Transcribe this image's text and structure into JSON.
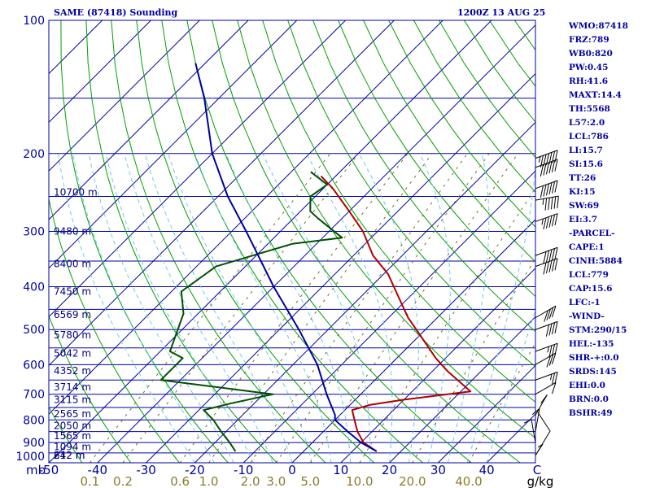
{
  "header": {
    "station": "SAME (87418) Sounding",
    "time": "1200Z 13 AUG 25"
  },
  "indices": [
    "WMO:87418",
    "FRZ:789",
    "WB0:820",
    "PW:0.45",
    "RH:41.6",
    "MAXT:14.4",
    "TH:5568",
    "L57:2.0",
    "LCL:786",
    "LI:15.7",
    "SI:15.6",
    "TT:26",
    "KI:15",
    "SW:69",
    "EI:3.7",
    "-PARCEL-",
    "CAPE:1",
    "CINH:5884",
    "LCL:779",
    "CAP:15.6",
    "LFC:-1",
    "-WIND-",
    "STM:290/15",
    "HEL:-135",
    "SHR-+:0.0",
    "SRDS:145",
    "EHI:0.0",
    "BRN:0.0",
    "BSHR:49"
  ],
  "colors": {
    "frame": "#0000a0",
    "isobar": "#0000a0",
    "isotherm": "#0000a0",
    "dry_adiabat": "#00a000",
    "moist_adiabat": "#6fc8ec",
    "mixing_ratio": "#7a6b1a",
    "temperature": "#b00000",
    "dewpoint": "#005000",
    "parcel": "#0000a0",
    "wind_barb": "#000000",
    "hodograph": "#000000"
  },
  "chart_data": {
    "type": "skew-t log-p sounding",
    "y_axis": {
      "label": "mb",
      "scale": "log",
      "range": [
        1000,
        100
      ],
      "tick_labels": [
        "100",
        "200",
        "300",
        "400",
        "500",
        "600",
        "700",
        "800",
        "900",
        "1000"
      ]
    },
    "x_axis": {
      "label": "C",
      "range": [
        -50,
        50
      ],
      "tick_labels": [
        "-50",
        "-40",
        "-30",
        "-20",
        "-10",
        "0",
        "10",
        "20",
        "30",
        "40"
      ],
      "skew": "isotherms tilted 45°"
    },
    "mixing_ratio_axis": {
      "unit": "g/kg",
      "tick_labels": [
        "0.1",
        "0.2",
        "0.6",
        "1.0",
        "2.0",
        "3.0",
        "5.0",
        "10.0",
        "20.0",
        "40.0"
      ]
    },
    "heights": [
      {
        "p": 245,
        "label": "10700 m"
      },
      {
        "p": 300,
        "label": "9480 m"
      },
      {
        "p": 355,
        "label": "8400 m"
      },
      {
        "p": 410,
        "label": "7450 m"
      },
      {
        "p": 463,
        "label": "6569 m"
      },
      {
        "p": 515,
        "label": "5780 m"
      },
      {
        "p": 566,
        "label": "5042 m"
      },
      {
        "p": 620,
        "label": "4352 m"
      },
      {
        "p": 675,
        "label": "3714 m"
      },
      {
        "p": 720,
        "label": "3115 m"
      },
      {
        "p": 775,
        "label": "2565 m"
      },
      {
        "p": 825,
        "label": "2050 m"
      },
      {
        "p": 870,
        "label": "1565 m"
      },
      {
        "p": 920,
        "label": "1094 m"
      },
      {
        "p": 965,
        "label": "642 m"
      },
      {
        "p": 1000,
        "label": "212 m"
      }
    ],
    "series": [
      {
        "key": "temperature",
        "points": [
          [
            942,
            15.0
          ],
          [
            900,
            10.5
          ],
          [
            850,
            7.0
          ],
          [
            800,
            4.0
          ],
          [
            760,
            1.5
          ],
          [
            740,
            4.0
          ],
          [
            720,
            10.0
          ],
          [
            690,
            22.0
          ],
          [
            620,
            13.0
          ],
          [
            580,
            8.0
          ],
          [
            530,
            2.0
          ],
          [
            470,
            -6.0
          ],
          [
            420,
            -12.5
          ],
          [
            375,
            -19.0
          ],
          [
            340,
            -26.0
          ],
          [
            300,
            -33.0
          ],
          [
            270,
            -40.0
          ],
          [
            240,
            -48.0
          ],
          [
            225,
            -53.0
          ]
        ]
      },
      {
        "key": "dewpoint",
        "points": [
          [
            942,
            -14.0
          ],
          [
            900,
            -17.0
          ],
          [
            850,
            -21.0
          ],
          [
            800,
            -25.0
          ],
          [
            760,
            -29.0
          ],
          [
            735,
            -25.0
          ],
          [
            700,
            -18.0
          ],
          [
            650,
            -44.0
          ],
          [
            580,
            -44.0
          ],
          [
            560,
            -48.0
          ],
          [
            460,
            -53.0
          ],
          [
            410,
            -58.0
          ],
          [
            360,
            -56.0
          ],
          [
            320,
            -45.0
          ],
          [
            310,
            -36.0
          ],
          [
            280,
            -45.0
          ],
          [
            270,
            -48.0
          ],
          [
            250,
            -51.0
          ],
          [
            235,
            -50.0
          ],
          [
            220,
            -56.0
          ]
        ]
      },
      {
        "key": "parcel",
        "points": [
          [
            942,
            15.0
          ],
          [
            900,
            10.0
          ],
          [
            850,
            5.0
          ],
          [
            800,
            0.0
          ],
          [
            780,
            -1.0
          ],
          [
            700,
            -7.0
          ],
          [
            600,
            -15.0
          ],
          [
            500,
            -26.0
          ],
          [
            400,
            -40.0
          ],
          [
            300,
            -57.0
          ],
          [
            250,
            -68.0
          ],
          [
            200,
            -80.0
          ],
          [
            150,
            -93.0
          ],
          [
            125,
            -102.0
          ]
        ]
      }
    ],
    "wind_barbs": [
      {
        "p": 205,
        "direction": 290,
        "speed_kt": 65
      },
      {
        "p": 215,
        "direction": 290,
        "speed_kt": 60
      },
      {
        "p": 240,
        "direction": 290,
        "speed_kt": 60
      },
      {
        "p": 255,
        "direction": 280,
        "speed_kt": 55
      },
      {
        "p": 285,
        "direction": 290,
        "speed_kt": 55
      },
      {
        "p": 340,
        "direction": 290,
        "speed_kt": 50
      },
      {
        "p": 360,
        "direction": 290,
        "speed_kt": 50
      },
      {
        "p": 470,
        "direction": 300,
        "speed_kt": 40
      },
      {
        "p": 500,
        "direction": 290,
        "speed_kt": 40
      },
      {
        "p": 560,
        "direction": 290,
        "speed_kt": 35
      },
      {
        "p": 600,
        "direction": 300,
        "speed_kt": 30
      },
      {
        "p": 650,
        "direction": 290,
        "speed_kt": 25
      },
      {
        "p": 700,
        "direction": 300,
        "speed_kt": 10
      },
      {
        "p": 780,
        "direction": 330,
        "speed_kt": 10
      },
      {
        "p": 850,
        "direction": 350,
        "speed_kt": 10
      },
      {
        "p": 900,
        "direction": 10,
        "speed_kt": 10
      }
    ]
  }
}
